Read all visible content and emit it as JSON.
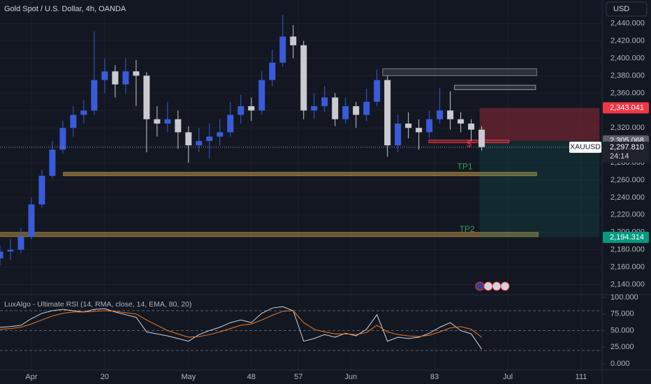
{
  "chart_data": {
    "type": "candlestick",
    "title": "Gold Spot / U.S. Dollar, 4h, OANDA",
    "currency": "USD",
    "x": [
      0,
      2,
      4,
      6,
      8,
      10,
      12,
      14,
      16,
      18,
      20,
      22,
      24,
      26,
      28,
      30,
      32,
      34,
      36,
      38,
      40,
      42,
      44,
      46,
      48,
      50,
      52,
      54,
      56,
      58,
      60,
      62,
      64,
      66,
      68,
      70,
      72,
      74,
      76,
      78,
      80,
      82,
      84,
      86,
      88,
      90,
      92
    ],
    "open": [
      2170,
      2178,
      2180,
      2195,
      2232,
      2265,
      2295,
      2320,
      2335,
      2340,
      2375,
      2385,
      2370,
      2385,
      2380,
      2330,
      2325,
      2330,
      2315,
      2300,
      2305,
      2310,
      2315,
      2335,
      2345,
      2340,
      2375,
      2395,
      2425,
      2415,
      2340,
      2345,
      2355,
      2330,
      2345,
      2335,
      2350,
      2375,
      2300,
      2325,
      2320,
      2315,
      2330,
      2340,
      2330,
      2325,
      2318
    ],
    "high": [
      2185,
      2192,
      2205,
      2240,
      2272,
      2305,
      2328,
      2345,
      2352,
      2431,
      2400,
      2392,
      2400,
      2398,
      2384,
      2345,
      2350,
      2340,
      2322,
      2320,
      2325,
      2330,
      2350,
      2358,
      2355,
      2385,
      2410,
      2450,
      2438,
      2420,
      2360,
      2368,
      2360,
      2355,
      2350,
      2365,
      2387,
      2380,
      2335,
      2338,
      2330,
      2340,
      2366,
      2362,
      2338,
      2330,
      2322
    ],
    "low": [
      2162,
      2168,
      2176,
      2192,
      2228,
      2262,
      2290,
      2310,
      2325,
      2335,
      2360,
      2355,
      2360,
      2345,
      2292,
      2310,
      2315,
      2296,
      2280,
      2292,
      2285,
      2300,
      2310,
      2325,
      2328,
      2335,
      2368,
      2390,
      2400,
      2330,
      2330,
      2338,
      2322,
      2325,
      2320,
      2328,
      2345,
      2287,
      2292,
      2308,
      2295,
      2308,
      2325,
      2318,
      2315,
      2305,
      2294
    ],
    "close": [
      2178,
      2180,
      2195,
      2232,
      2265,
      2295,
      2320,
      2335,
      2340,
      2375,
      2385,
      2370,
      2385,
      2380,
      2330,
      2325,
      2330,
      2315,
      2300,
      2305,
      2310,
      2315,
      2335,
      2345,
      2340,
      2375,
      2395,
      2425,
      2415,
      2340,
      2345,
      2355,
      2330,
      2345,
      2335,
      2350,
      2375,
      2300,
      2325,
      2320,
      2315,
      2330,
      2340,
      2330,
      2325,
      2318,
      2298
    ],
    "up_color": "#3a5bd9",
    "down_color": "#c9cbd1",
    "xlim": [
      0,
      115
    ],
    "xticks": [
      {
        "value": 6,
        "label": "Apr"
      },
      20,
      {
        "value": 36,
        "label": "May"
      },
      48,
      57,
      {
        "value": 67,
        "label": "Jun"
      },
      83,
      {
        "value": 97,
        "label": "Jul"
      },
      111
    ],
    "ylim": [
      2130,
      2467
    ],
    "yticks": [
      {
        "value": 2140,
        "label": "2,140.000"
      },
      {
        "value": 2160,
        "label": "2,160.000"
      },
      {
        "value": 2180,
        "label": "2,180.000"
      },
      {
        "value": 2200,
        "label": "2,200.000"
      },
      {
        "value": 2220,
        "label": "2,220.000"
      },
      {
        "value": 2240,
        "label": "2,240.000"
      },
      {
        "value": 2260,
        "label": "2,260.000"
      },
      {
        "value": 2280,
        "label": "2,280.000"
      },
      {
        "value": 2300,
        "label": "2,300.000"
      },
      {
        "value": 2320,
        "label": "2,320.000"
      },
      {
        "value": 2340,
        "label": "2,340.000"
      },
      {
        "value": 2360,
        "label": "2,360.000"
      },
      {
        "value": 2380,
        "label": "2,380.000"
      },
      {
        "value": 2400,
        "label": "2,400.000"
      },
      {
        "value": 2420,
        "label": "2,420.000"
      },
      {
        "value": 2440,
        "label": "2,440.000"
      }
    ],
    "grid": true,
    "current_price": {
      "value": 2297.81,
      "label": "2,297.810"
    },
    "countdown": "24:14",
    "symbol": "XAUUSD",
    "price_labels": [
      {
        "value": 2343.041,
        "label": "2,343.041",
        "color": "#f23645"
      },
      {
        "value": 2305.068,
        "label": "2,305.068",
        "color": "#5d606b"
      },
      {
        "value": 2194.314,
        "label": "2,194.314",
        "color": "#089981"
      }
    ],
    "zones": [
      {
        "x": [
          73.1,
          102.5
        ],
        "y": [
          2388,
          2380
        ],
        "color": "rgba(120,123,134,0.25)",
        "stroke": "#787b86"
      },
      {
        "x": [
          86.8,
          102.3
        ],
        "y": [
          2369,
          2364
        ],
        "color": "rgba(120,123,134,0.25)",
        "stroke": "#9598a1"
      },
      {
        "x": [
          12.1,
          102.5
        ],
        "y": [
          2269,
          2265
        ],
        "color": "rgba(190,150,70,0.55)",
        "stroke": "rgba(190,150,70,0.7)"
      },
      {
        "x": [
          0.1,
          102.8
        ],
        "y": [
          2200,
          2195
        ],
        "color": "rgba(190,150,70,0.5)",
        "stroke": "rgba(190,150,70,0.6)"
      },
      {
        "x": [
          91.6,
          114.5
        ],
        "y": [
          2343.041,
          2305.068
        ],
        "color": "rgba(242,54,69,0.3)",
        "stroke": "none"
      },
      {
        "x": [
          91.6,
          114.5
        ],
        "y": [
          2305.068,
          2194.314
        ],
        "color": "rgba(8,153,129,0.14)",
        "stroke": "none"
      },
      {
        "x": [
          81.9,
          97.2
        ],
        "y": [
          2306,
          2303
        ],
        "color": "rgba(242,54,69,0.35)",
        "stroke": "#f23645"
      }
    ],
    "annotations": [
      {
        "text": "TP1",
        "x": 88.8,
        "y": 2275,
        "color": "#2e9e5b"
      },
      {
        "text": "TP2",
        "x": 89.2,
        "y": 2203,
        "color": "#2e9e5b"
      },
      {
        "text": "$",
        "x": 89.6,
        "y": 2301,
        "color": "#f23645"
      }
    ],
    "rsi": {
      "title": "LuxAlgo - Ultimate RSI (14, RMA, close, 14, EMA, 80, 20)",
      "series": [
        {
          "color": "#d1d4dc",
          "values": [
            55,
            56,
            58,
            68,
            76,
            80,
            82,
            80,
            78,
            82,
            83,
            78,
            74,
            70,
            48,
            45,
            42,
            38,
            34,
            44,
            50,
            55,
            62,
            66,
            62,
            76,
            84,
            86,
            80,
            34,
            38,
            44,
            40,
            46,
            42,
            52,
            74,
            34,
            40,
            38,
            40,
            46,
            55,
            62,
            50,
            45,
            22
          ]
        },
        {
          "color": "#f07b1f",
          "values": [
            52,
            53,
            55,
            60,
            66,
            72,
            76,
            78,
            78,
            79,
            80,
            79,
            77,
            75,
            66,
            58,
            50,
            45,
            40,
            41,
            44,
            48,
            53,
            58,
            60,
            66,
            73,
            79,
            80,
            62,
            52,
            48,
            45,
            45,
            44,
            47,
            58,
            48,
            44,
            42,
            41,
            43,
            48,
            54,
            56,
            52,
            40
          ]
        }
      ],
      "ylim": [
        -9.5,
        104.2
      ],
      "yticks": [
        {
          "value": 0,
          "label": "0.000"
        },
        {
          "value": 25,
          "label": "25.000"
        },
        {
          "value": 50,
          "label": "50.000"
        },
        {
          "value": 75,
          "label": "75.000"
        },
        {
          "value": 100,
          "label": "100.000"
        }
      ],
      "levels": [
        80,
        50,
        20
      ]
    }
  }
}
